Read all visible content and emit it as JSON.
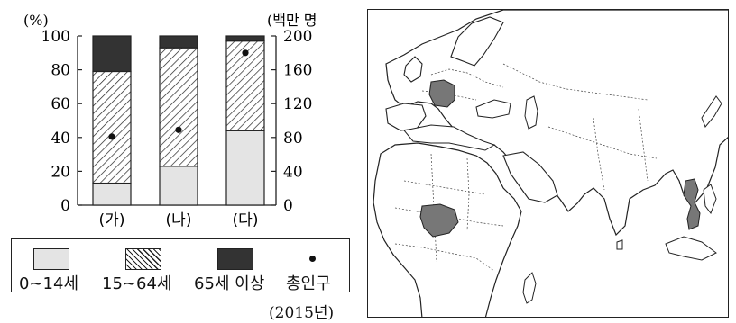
{
  "chart_data": {
    "type": "bar",
    "subtype": "stacked-100-percent-with-dots",
    "categories": [
      "(가)",
      "(나)",
      "(다)"
    ],
    "series": [
      {
        "name": "0~14세",
        "values": [
          13,
          23,
          44
        ],
        "color": "#e4e4e4",
        "pattern": "solid"
      },
      {
        "name": "15~64세",
        "values": [
          66,
          70,
          53
        ],
        "color": "#ffffff",
        "pattern": "hatched"
      },
      {
        "name": "65세 이상",
        "values": [
          21,
          7,
          3
        ],
        "color": "#333333",
        "pattern": "solid"
      }
    ],
    "total_population": {
      "name": "총인구",
      "values": [
        81,
        89,
        180
      ],
      "unit": "백만 명"
    },
    "left_axis": {
      "label": "(%)",
      "ylim": [
        0,
        100
      ],
      "ticks": [
        "0",
        "20",
        "40",
        "60",
        "80",
        "100"
      ]
    },
    "right_axis": {
      "label": "(백만 명",
      "ylim": [
        0,
        200
      ],
      "ticks": [
        "0",
        "40",
        "80",
        "120",
        "160",
        "200"
      ]
    },
    "year_note": "(2015년)",
    "grid": false
  },
  "map": {
    "highlighted_countries": [
      "germany",
      "nigeria",
      "vietnam"
    ],
    "highlight_color": "#777777"
  }
}
